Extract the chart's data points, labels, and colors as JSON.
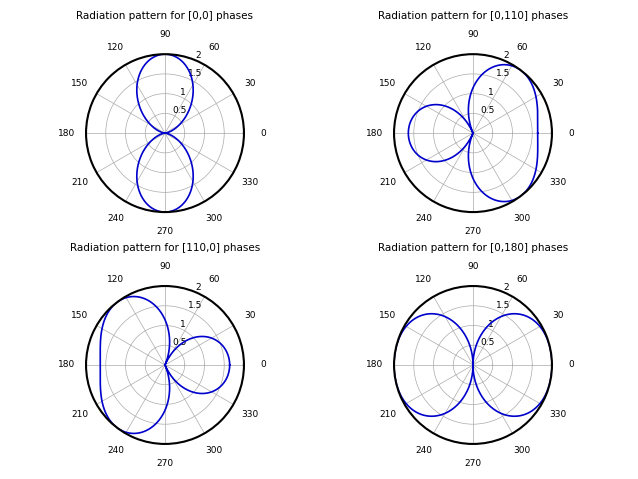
{
  "subplots": [
    {
      "title": "Radiation pattern for [0,0] phases",
      "phase_diff": 0
    },
    {
      "title": "Radiation pattern for [0,110] phases",
      "phase_diff": 110
    },
    {
      "title": "Radiation pattern for [110,0] phases",
      "phase_diff": -110
    },
    {
      "title": "Radiation pattern for [0,180] phases",
      "phase_diff": 180
    }
  ],
  "rmax": 2.0,
  "rticks": [
    0.5,
    1.0,
    1.5,
    2.0
  ],
  "rtick_labels": [
    "0.5",
    "1",
    "1.5",
    "2"
  ],
  "line_color": "#0000cc",
  "line_width": 1.2,
  "title_fontsize": 7.5,
  "tick_fontsize": 6.5,
  "background_color": "white",
  "grid_color": "#aaaaaa",
  "outer_circle_color": "black",
  "outer_circle_lw": 1.5
}
